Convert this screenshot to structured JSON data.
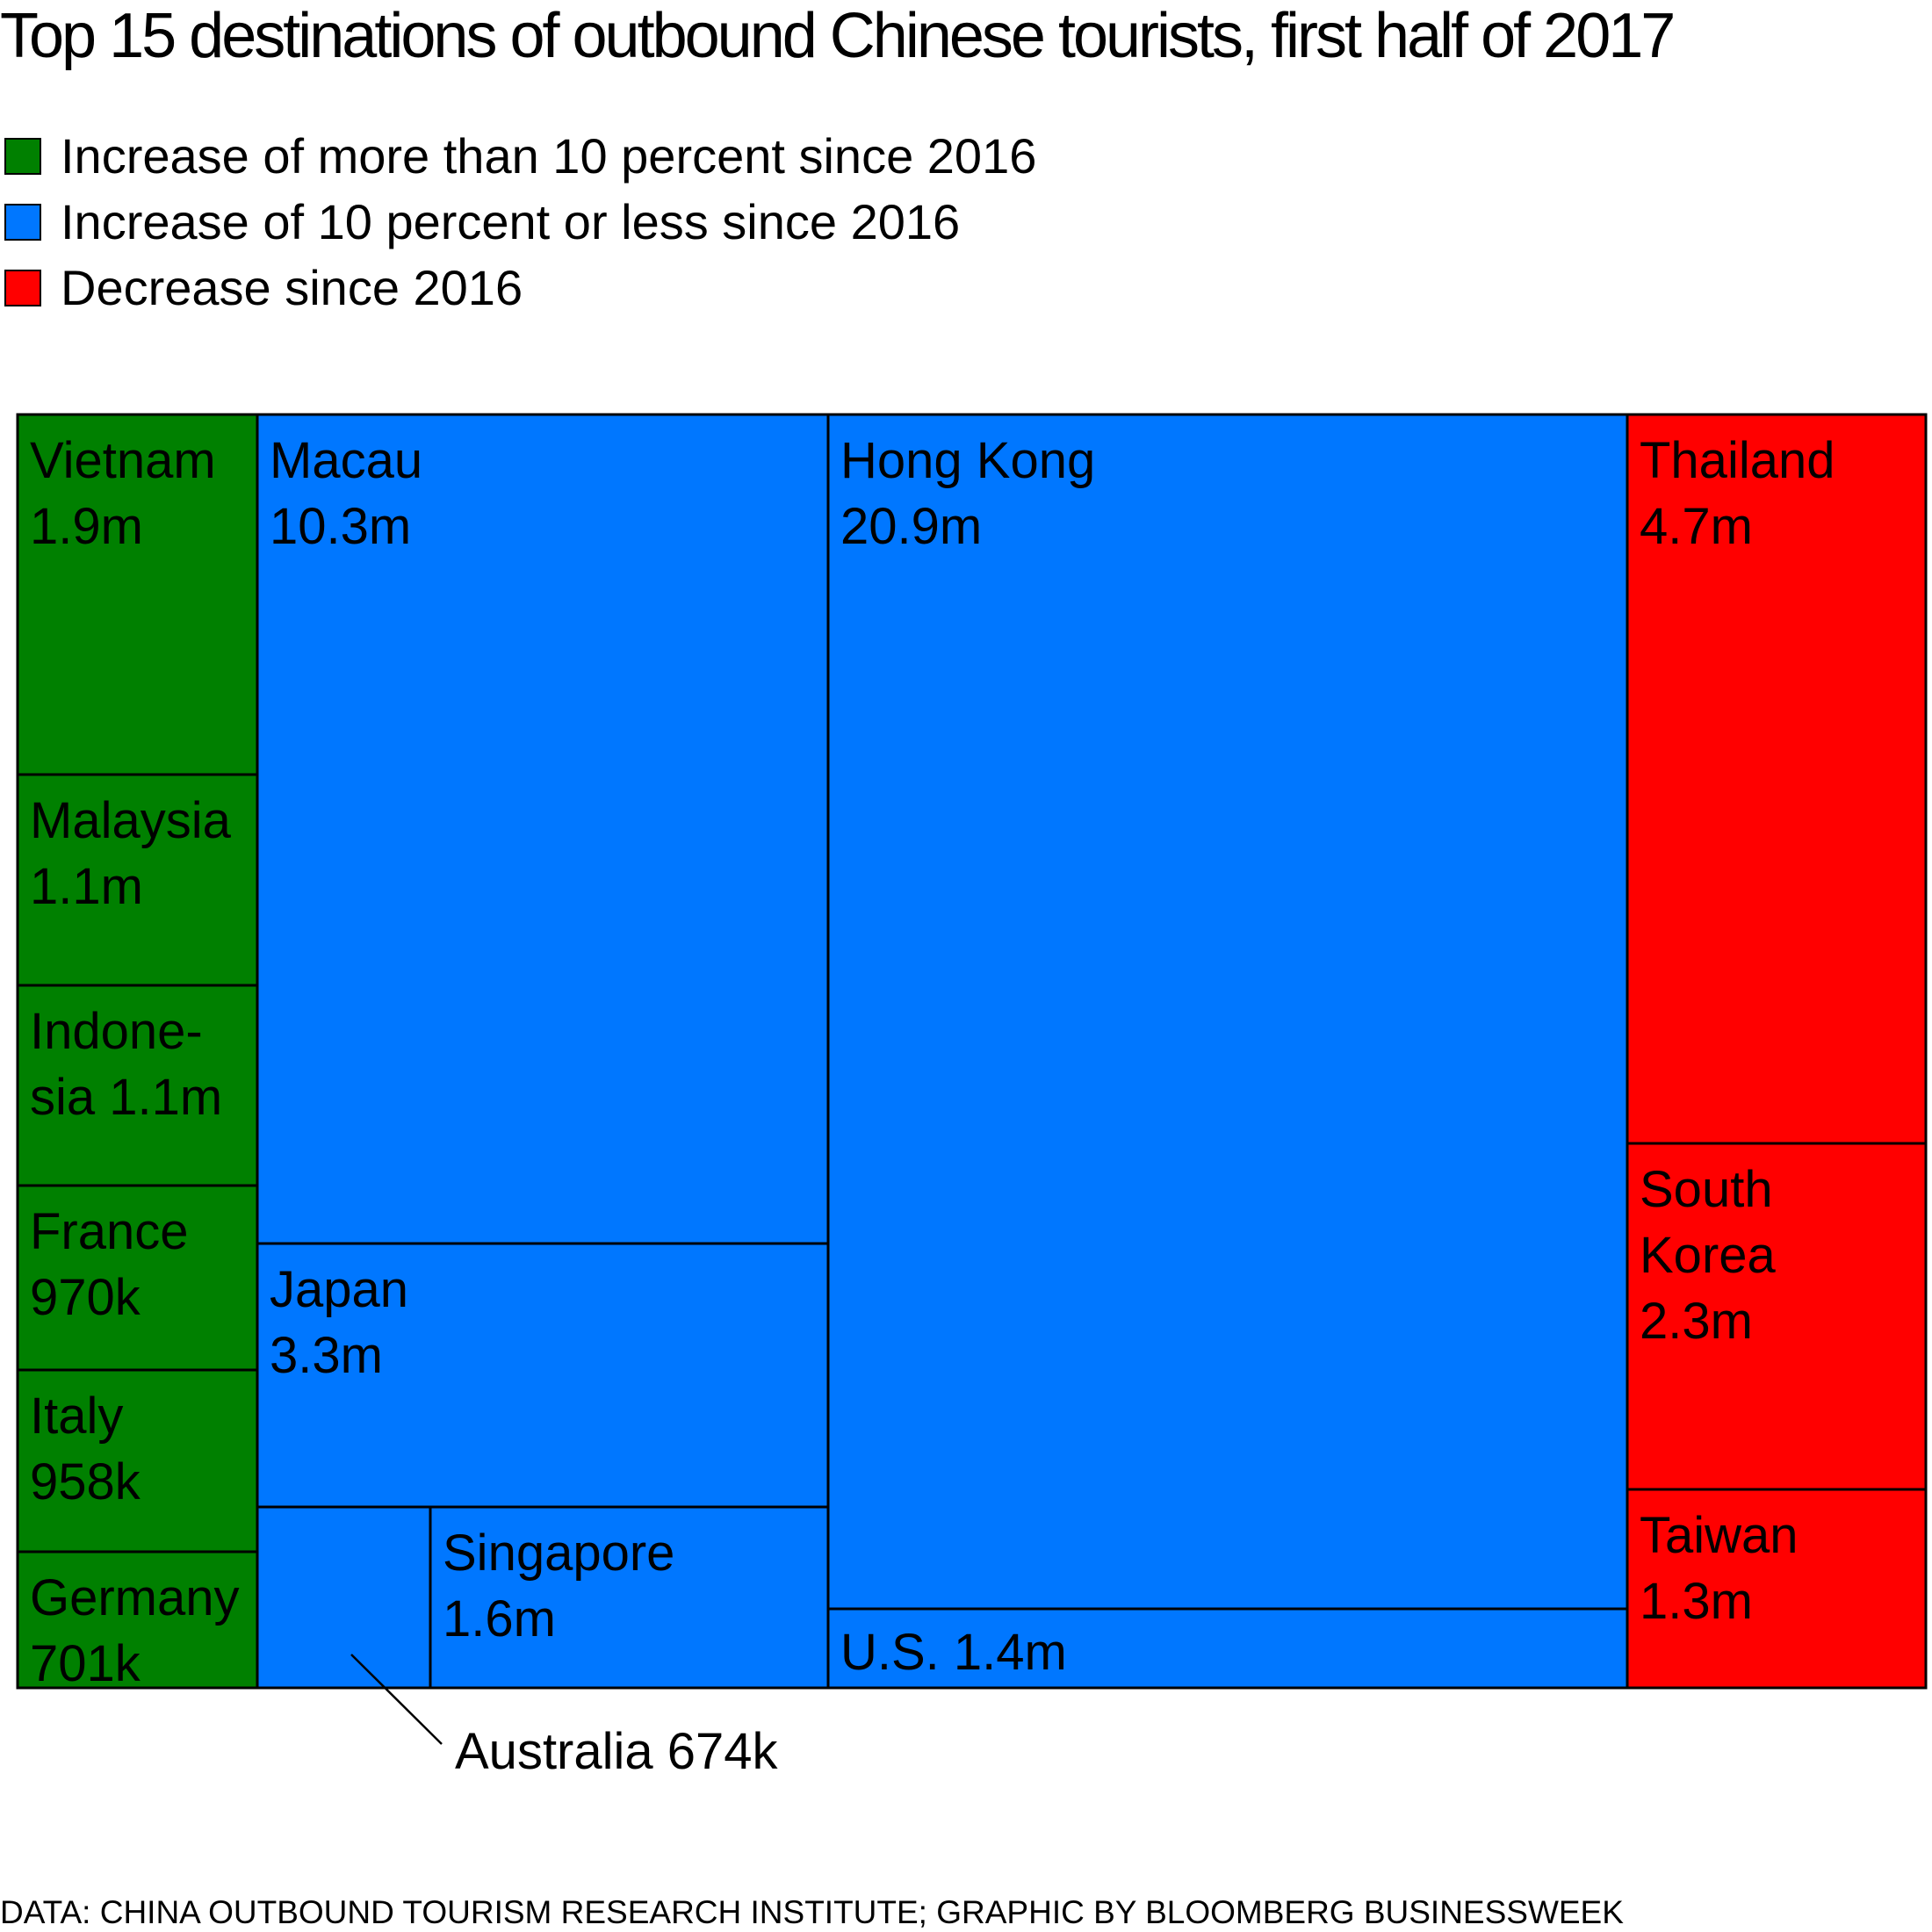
{
  "chart_data": {
    "type": "treemap",
    "title": "Top 15 destinations of outbound Chinese tourists, first half of 2017",
    "legend": [
      {
        "key": "gt10",
        "label": "Increase of more than 10 percent since 2016",
        "color": "#008000"
      },
      {
        "key": "le10",
        "label": "Increase of 10 percent or less since 2016",
        "color": "#0077ff"
      },
      {
        "key": "dec",
        "label": "Decrease since 2016",
        "color": "#ff0000"
      }
    ],
    "items": [
      {
        "name": "Vietnam",
        "value_label": "1.9m",
        "value": 1900000,
        "category": "gt10",
        "label_lines": [
          "Vietnam",
          "1.9m"
        ]
      },
      {
        "name": "Malaysia",
        "value_label": "1.1m",
        "value": 1100000,
        "category": "gt10",
        "label_lines": [
          "Malaysia",
          "1.1m"
        ]
      },
      {
        "name": "Indonesia",
        "value_label": "1.1m",
        "value": 1100000,
        "category": "gt10",
        "label_lines": [
          "Indone-",
          "sia 1.1m"
        ]
      },
      {
        "name": "France",
        "value_label": "970k",
        "value": 970000,
        "category": "gt10",
        "label_lines": [
          "France",
          "970k"
        ]
      },
      {
        "name": "Italy",
        "value_label": "958k",
        "value": 958000,
        "category": "gt10",
        "label_lines": [
          "Italy",
          "958k"
        ]
      },
      {
        "name": "Germany",
        "value_label": "701k",
        "value": 701000,
        "category": "gt10",
        "label_lines": [
          "Germany",
          "701k"
        ]
      },
      {
        "name": "Macau",
        "value_label": "10.3m",
        "value": 10300000,
        "category": "le10",
        "label_lines": [
          "Macau",
          "10.3m"
        ]
      },
      {
        "name": "Japan",
        "value_label": "3.3m",
        "value": 3300000,
        "category": "le10",
        "label_lines": [
          "Japan",
          "3.3m"
        ]
      },
      {
        "name": "Australia",
        "value_label": "674k",
        "value": 674000,
        "category": "le10",
        "label_lines": [
          "Australia 674k"
        ]
      },
      {
        "name": "Singapore",
        "value_label": "1.6m",
        "value": 1600000,
        "category": "le10",
        "label_lines": [
          "Singapore",
          "1.6m"
        ]
      },
      {
        "name": "Hong Kong",
        "value_label": "20.9m",
        "value": 20900000,
        "category": "le10",
        "label_lines": [
          "Hong Kong",
          "20.9m"
        ]
      },
      {
        "name": "U.S.",
        "value_label": "1.4m",
        "value": 1400000,
        "category": "le10",
        "label_lines": [
          "U.S. 1.4m"
        ]
      },
      {
        "name": "Thailand",
        "value_label": "4.7m",
        "value": 4700000,
        "category": "dec",
        "label_lines": [
          "Thailand",
          "4.7m"
        ]
      },
      {
        "name": "South Korea",
        "value_label": "2.3m",
        "value": 2300000,
        "category": "dec",
        "label_lines": [
          "South",
          "Korea",
          "2.3m"
        ]
      },
      {
        "name": "Taiwan",
        "value_label": "1.3m",
        "value": 1300000,
        "category": "dec",
        "label_lines": [
          "Taiwan",
          "1.3m"
        ]
      }
    ],
    "source": "DATA: CHINA OUTBOUND TOURISM RESEARCH INSTITUTE; GRAPHIC BY BLOOMBERG BUSINESSWEEK"
  }
}
